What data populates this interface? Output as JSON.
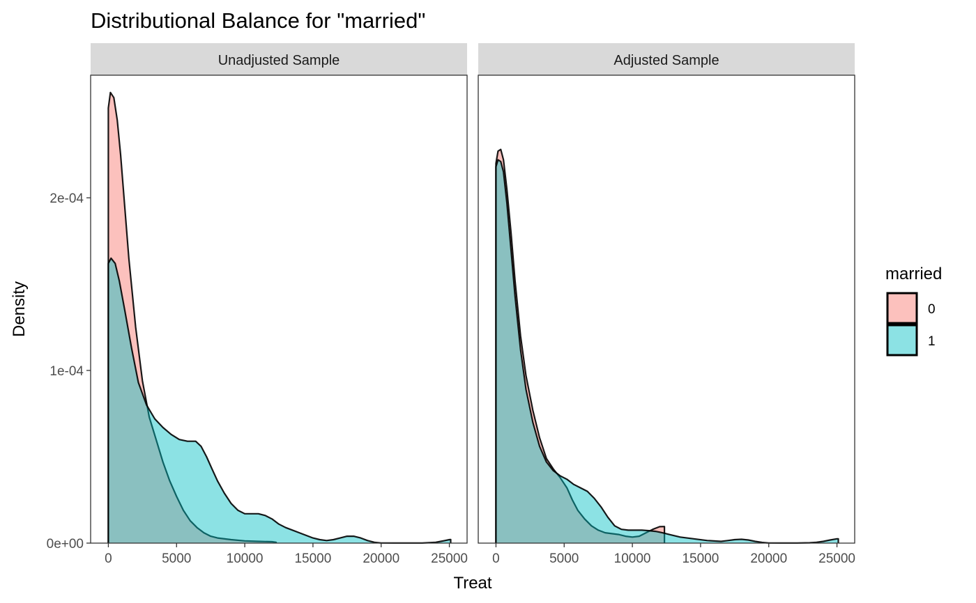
{
  "chart_data": {
    "type": "area",
    "title": "Distributional Balance for \"married\"",
    "xlabel": "Treat",
    "ylabel": "Density",
    "xlim": [
      -1300,
      26300
    ],
    "ylim": [
      0,
      0.000271
    ],
    "x_ticks": [
      {
        "value": 0,
        "label": "0"
      },
      {
        "value": 5000,
        "label": "5000"
      },
      {
        "value": 10000,
        "label": "10000"
      },
      {
        "value": 15000,
        "label": "15000"
      },
      {
        "value": 20000,
        "label": "20000"
      },
      {
        "value": 25000,
        "label": "25000"
      }
    ],
    "y_ticks": [
      {
        "value": 0,
        "label": "0e+00"
      },
      {
        "value": 0.0001,
        "label": "1e-04"
      },
      {
        "value": 0.0002,
        "label": "2e-04"
      }
    ],
    "grid": false,
    "legend": {
      "title": "married",
      "position": "right",
      "entries": [
        {
          "label": "0",
          "color": "#F8766D"
        },
        {
          "label": "1",
          "color": "#00BFC4"
        }
      ]
    },
    "panels": [
      {
        "label": "Unadjusted Sample",
        "series": [
          {
            "name": "0",
            "color": "#F8766D",
            "x": [
              0,
              150,
              400,
              650,
              900,
              1200,
              1500,
              2000,
              2500,
              3000,
              3500,
              4000,
              4500,
              5000,
              5500,
              6000,
              6500,
              7000,
              7500,
              8000,
              9000,
              10000,
              11000,
              12000,
              12300
            ],
            "y": [
              0.000252,
              0.000261,
              0.000258,
              0.000245,
              0.000225,
              0.000195,
              0.000165,
              0.000125,
              9.4e-05,
              7.3e-05,
              6e-05,
              4.7e-05,
              3.6e-05,
              2.7e-05,
              1.9e-05,
              1.3e-05,
              9e-06,
              6e-06,
              4e-06,
              3e-06,
              2e-06,
              1.3e-06,
              1e-06,
              8e-07,
              5e-07
            ]
          },
          {
            "name": "1",
            "color": "#00BFC4",
            "x": [
              0,
              200,
              500,
              800,
              1200,
              1700,
              2200,
              2800,
              3400,
              4000,
              4600,
              5200,
              5800,
              6400,
              6800,
              7200,
              7600,
              8000,
              8500,
              9000,
              9500,
              10000,
              10500,
              11000,
              11500,
              12000,
              12500,
              13000,
              14000,
              15000,
              15500,
              16000,
              16500,
              17000,
              17500,
              18000,
              18500,
              19000,
              19500,
              20000,
              21000,
              22000,
              23000,
              24000,
              24500,
              25000,
              25100
            ],
            "y": [
              0.000162,
              0.000165,
              0.000162,
              0.000152,
              0.000135,
              0.000113,
              9.3e-05,
              8e-05,
              7.2e-05,
              6.7e-05,
              6.3e-05,
              6e-05,
              5.9e-05,
              5.9e-05,
              5.6e-05,
              5e-05,
              4.3e-05,
              3.6e-05,
              2.9e-05,
              2.3e-05,
              1.9e-05,
              1.7e-05,
              1.7e-05,
              1.7e-05,
              1.6e-05,
              1.4e-05,
              1.1e-05,
              9e-06,
              6e-06,
              3e-06,
              2e-06,
              1.5e-06,
              2e-06,
              3e-06,
              4e-06,
              4e-06,
              3e-06,
              1.5e-06,
              5e-07,
              1e-07,
              5e-08,
              5e-08,
              5e-08,
              5e-07,
              1.2e-06,
              2e-06,
              2.1e-06
            ]
          }
        ]
      },
      {
        "label": "Adjusted Sample",
        "series": [
          {
            "name": "0",
            "color": "#F8766D",
            "x": [
              0,
              150,
              350,
              550,
              800,
              1100,
              1400,
              1800,
              2200,
              2700,
              3200,
              3700,
              4200,
              4700,
              5200,
              5600,
              6000,
              6500,
              7000,
              7500,
              8000,
              8500,
              9000,
              9500,
              10000,
              10500,
              11000,
              11500,
              12000,
              12300,
              12350
            ],
            "y": [
              0.00022,
              0.000227,
              0.000228,
              0.000222,
              0.000205,
              0.00018,
              0.000152,
              0.00012,
              9.7e-05,
              7.7e-05,
              6.1e-05,
              4.9e-05,
              4.3e-05,
              3.8e-05,
              3.2e-05,
              2.5e-05,
              1.9e-05,
              1.4e-05,
              1e-05,
              7.5e-06,
              6e-06,
              5.5e-06,
              5e-06,
              4e-06,
              3.5e-06,
              4e-06,
              6e-06,
              8e-06,
              9.5e-06,
              9.6e-06,
              9.6e-06
            ]
          },
          {
            "name": "1",
            "color": "#00BFC4",
            "x": [
              0,
              150,
              350,
              550,
              800,
              1100,
              1400,
              1800,
              2200,
              2700,
              3200,
              3700,
              4200,
              4700,
              5200,
              5700,
              6200,
              6700,
              7200,
              7700,
              8200,
              8700,
              9200,
              9700,
              10200,
              10700,
              11200,
              11700,
              12200,
              12700,
              13500,
              14500,
              15500,
              16500,
              17000,
              17500,
              18000,
              18500,
              19000,
              19500,
              20000,
              21000,
              22000,
              23000,
              23500,
              24000,
              24500,
              25000,
              25100
            ],
            "y": [
              0.000218,
              0.000222,
              0.000221,
              0.000215,
              0.000197,
              0.00017,
              0.000143,
              0.000112,
              8.9e-05,
              7e-05,
              5.6e-05,
              4.7e-05,
              4.2e-05,
              3.9e-05,
              3.7e-05,
              3.4e-05,
              3.2e-05,
              3e-05,
              2.6e-05,
              2.1e-05,
              1.5e-05,
              1e-05,
              8e-06,
              7.5e-06,
              7.5e-06,
              7.5e-06,
              7.2e-06,
              6.8e-06,
              6e-06,
              5e-06,
              3.5e-06,
              2.5e-06,
              1.5e-06,
              1e-06,
              1.5e-06,
              2e-06,
              2.2e-06,
              1.8e-06,
              1e-06,
              4e-07,
              1e-07,
              5e-08,
              5e-08,
              2e-07,
              5e-07,
              1e-06,
              1.8e-06,
              2.5e-06,
              2.5e-06
            ]
          }
        ]
      }
    ]
  }
}
